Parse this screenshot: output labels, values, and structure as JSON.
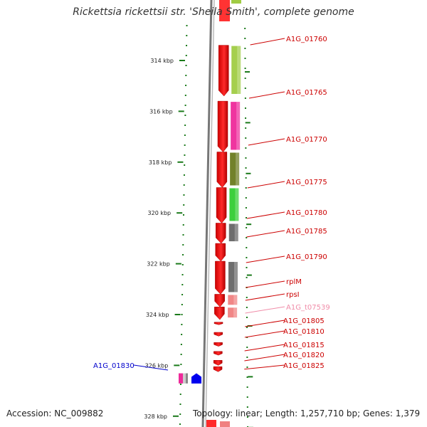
{
  "title": "Rickettsia rickettsii str. 'Sheila Smith', complete genome",
  "footer": {
    "accession": "Accession: NC_009882",
    "summary": "Topology: linear; Length: 1,257,710 bp; Genes: 1,379"
  },
  "colors": {
    "label_default": "#cc0000",
    "label_trna": "#f08ca8",
    "label_reverse": "#0000cc",
    "tick": "#1a7a1a",
    "backbone": "#888888"
  },
  "scale": {
    "unit": "kbp",
    "ticks": [
      {
        "label": "314 kbp",
        "kbp": 314
      },
      {
        "label": "316 kbp",
        "kbp": 316
      },
      {
        "label": "318 kbp",
        "kbp": 318
      },
      {
        "label": "320 kbp",
        "kbp": 320
      },
      {
        "label": "322 kbp",
        "kbp": 322
      },
      {
        "label": "324 kbp",
        "kbp": 324
      },
      {
        "label": "326 kbp",
        "kbp": 326
      },
      {
        "label": "328 kbp",
        "kbp": 328
      }
    ]
  },
  "genes": [
    {
      "name": "A1G_01760",
      "label_color": "#cc0000",
      "strand": "+",
      "start": 313.4,
      "end": 315.4,
      "feature_color": "#a0cc44"
    },
    {
      "name": "A1G_01765",
      "label_color": "#cc0000",
      "strand": "+",
      "start": 315.6,
      "end": 317.6,
      "feature_color": "#ee2a9a"
    },
    {
      "name": "A1G_01770",
      "label_color": "#cc0000",
      "strand": "+",
      "start": 317.6,
      "end": 319.0,
      "feature_color": "#6a7a1e"
    },
    {
      "name": "A1G_01775",
      "label_color": "#cc0000",
      "strand": "+",
      "start": 319.0,
      "end": 320.4,
      "feature_color": "#33cc33"
    },
    {
      "name": "A1G_01780",
      "label_color": "#cc0000",
      "strand": "+",
      "start": 320.4,
      "end": 321.2,
      "feature_color": "#666666"
    },
    {
      "name": "A1G_01785",
      "label_color": "#cc0000",
      "strand": "+",
      "start": 321.2,
      "end": 321.9,
      "feature_color": ""
    },
    {
      "name": "A1G_01790",
      "label_color": "#cc0000",
      "strand": "+",
      "start": 321.9,
      "end": 323.2,
      "feature_color": "#666666"
    },
    {
      "name": "rplM",
      "label_color": "#cc0000",
      "strand": "+",
      "start": 323.2,
      "end": 323.7,
      "feature_color": "#f08080"
    },
    {
      "name": "rpsI",
      "label_color": "#cc0000",
      "strand": "+",
      "start": 323.7,
      "end": 324.2,
      "feature_color": "#f08080"
    },
    {
      "name": "A1G_t07539",
      "label_color": "#f08ca8",
      "strand": "+",
      "start": 324.3,
      "end": 324.4,
      "feature_color": ""
    },
    {
      "name": "A1G_01805",
      "label_color": "#cc0000",
      "strand": "+",
      "start": 324.7,
      "end": 324.85,
      "feature_color": ""
    },
    {
      "name": "A1G_01810",
      "label_color": "#cc0000",
      "strand": "+",
      "start": 325.1,
      "end": 325.25,
      "feature_color": ""
    },
    {
      "name": "A1G_01815",
      "label_color": "#cc0000",
      "strand": "+",
      "start": 325.45,
      "end": 325.6,
      "feature_color": ""
    },
    {
      "name": "A1G_01820",
      "label_color": "#cc0000",
      "strand": "+",
      "start": 325.8,
      "end": 326.0,
      "feature_color": ""
    },
    {
      "name": "A1G_01825",
      "label_color": "#cc0000",
      "strand": "+",
      "start": 326.05,
      "end": 326.25,
      "feature_color": ""
    },
    {
      "name": "A1G_01830",
      "label_color": "#0000cc",
      "strand": "-",
      "start": 326.2,
      "end": 326.6,
      "feature_color": "#0000ee"
    }
  ]
}
